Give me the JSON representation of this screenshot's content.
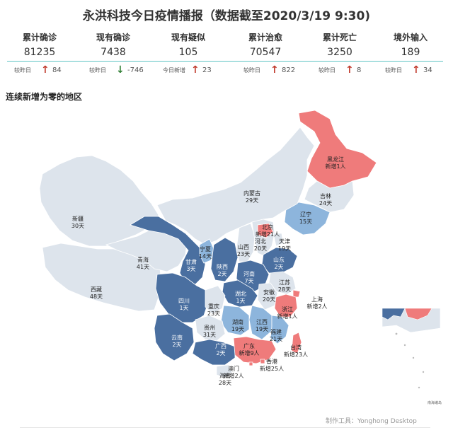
{
  "title": "永洪科技今日疫情播报（数据截至2020/3/19 9:30)",
  "stats": [
    {
      "label": "累计确诊",
      "value": "81235",
      "delta_label": "较昨日",
      "delta": "84",
      "direction": "up"
    },
    {
      "label": "现有确诊",
      "value": "7438",
      "delta_label": "较昨日",
      "delta": "-746",
      "direction": "down"
    },
    {
      "label": "现有疑似",
      "value": "105",
      "delta_label": "今日新增",
      "delta": "23",
      "direction": "up"
    },
    {
      "label": "累计治愈",
      "value": "70547",
      "delta_label": "较昨日",
      "delta": "822",
      "direction": "up"
    },
    {
      "label": "累计死亡",
      "value": "3250",
      "delta_label": "较昨日",
      "delta": "8",
      "direction": "up"
    },
    {
      "label": "境外输入",
      "value": "189",
      "delta_label": "较昨日",
      "delta": "34",
      "direction": "up"
    }
  ],
  "section_title": "连续新增为零的地区",
  "footer": "制作工具：Yonghong Desktop",
  "inset_label": "南海诸岛",
  "colors": {
    "new_case": "#ef7b7b",
    "dark": "#4a6fa0",
    "mid": "#8db5dc",
    "light": "#dde4ec",
    "border": "#ffffff",
    "accent_line": "#5fc4c4"
  },
  "chart_data": {
    "type": "map",
    "title": "连续新增为零的地区",
    "regions": [
      {
        "name": "黑龙江",
        "line1": "黑龙江",
        "line2": "新增1人",
        "status": "new",
        "new_cases": 1
      },
      {
        "name": "吉林",
        "line1": "吉林",
        "line2": "24天",
        "status": "light",
        "zero_days": 24
      },
      {
        "name": "辽宁",
        "line1": "辽宁",
        "line2": "15天",
        "status": "mid",
        "zero_days": 15
      },
      {
        "name": "内蒙古",
        "line1": "内蒙古",
        "line2": "29天",
        "status": "light",
        "zero_days": 29
      },
      {
        "name": "新疆",
        "line1": "新疆",
        "line2": "30天",
        "status": "light",
        "zero_days": 30
      },
      {
        "name": "西藏",
        "line1": "西藏",
        "line2": "48天",
        "status": "light",
        "zero_days": 48
      },
      {
        "name": "青海",
        "line1": "青海",
        "line2": "41天",
        "status": "light",
        "zero_days": 41
      },
      {
        "name": "甘肃",
        "line1": "甘肃",
        "line2": "3天",
        "status": "dark",
        "zero_days": 3
      },
      {
        "name": "宁夏",
        "line1": "宁夏",
        "line2": "14天",
        "status": "mid",
        "zero_days": 14
      },
      {
        "name": "陕西",
        "line1": "陕西",
        "line2": "2天",
        "status": "dark",
        "zero_days": 2
      },
      {
        "name": "山西",
        "line1": "山西",
        "line2": "23天",
        "status": "light",
        "zero_days": 23
      },
      {
        "name": "河北",
        "line1": "河北",
        "line2": "20天",
        "status": "light",
        "zero_days": 20
      },
      {
        "name": "北京",
        "line1": "北京",
        "line2": "新增21人",
        "status": "new",
        "new_cases": 21
      },
      {
        "name": "天津",
        "line1": "天津",
        "line2": "19天",
        "status": "light",
        "zero_days": 19
      },
      {
        "name": "山东",
        "line1": "山东",
        "line2": "2天",
        "status": "dark",
        "zero_days": 2
      },
      {
        "name": "河南",
        "line1": "河南",
        "line2": "7天",
        "status": "dark",
        "zero_days": 7
      },
      {
        "name": "江苏",
        "line1": "江苏",
        "line2": "28天",
        "status": "light",
        "zero_days": 28
      },
      {
        "name": "安徽",
        "line1": "安徽",
        "line2": "20天",
        "status": "light",
        "zero_days": 20
      },
      {
        "name": "湖北",
        "line1": "湖北",
        "line2": "1天",
        "status": "dark",
        "zero_days": 1
      },
      {
        "name": "上海",
        "line1": "上海",
        "line2": "新增2人",
        "status": "new",
        "new_cases": 2
      },
      {
        "name": "浙江",
        "line1": "浙江",
        "line2": "新增1人",
        "status": "new",
        "new_cases": 1
      },
      {
        "name": "四川",
        "line1": "四川",
        "line2": "1天",
        "status": "dark",
        "zero_days": 1
      },
      {
        "name": "重庆",
        "line1": "重庆",
        "line2": "23天",
        "status": "light",
        "zero_days": 23
      },
      {
        "name": "湖南",
        "line1": "湖南",
        "line2": "19天",
        "status": "mid",
        "zero_days": 19
      },
      {
        "name": "江西",
        "line1": "江西",
        "line2": "19天",
        "status": "mid",
        "zero_days": 19
      },
      {
        "name": "福建",
        "line1": "福建",
        "line2": "21天",
        "status": "mid",
        "zero_days": 21
      },
      {
        "name": "贵州",
        "line1": "贵州",
        "line2": "31天",
        "status": "light",
        "zero_days": 31
      },
      {
        "name": "云南",
        "line1": "云南",
        "line2": "2天",
        "status": "dark",
        "zero_days": 2
      },
      {
        "name": "广西",
        "line1": "广西",
        "line2": "2天",
        "status": "dark",
        "zero_days": 2
      },
      {
        "name": "广东",
        "line1": "广东",
        "line2": "新增9人",
        "status": "new",
        "new_cases": 9
      },
      {
        "name": "台湾",
        "line1": "台湾",
        "line2": "新增23人",
        "status": "new",
        "new_cases": 23
      },
      {
        "name": "香港",
        "line1": "香港",
        "line2": "新增25人",
        "status": "new",
        "new_cases": 25
      },
      {
        "name": "澳门",
        "line1": "澳门",
        "line2": "新增2人",
        "status": "new",
        "new_cases": 2
      },
      {
        "name": "海南",
        "line1": "海南",
        "line2": "28天",
        "status": "light",
        "zero_days": 28
      }
    ]
  }
}
